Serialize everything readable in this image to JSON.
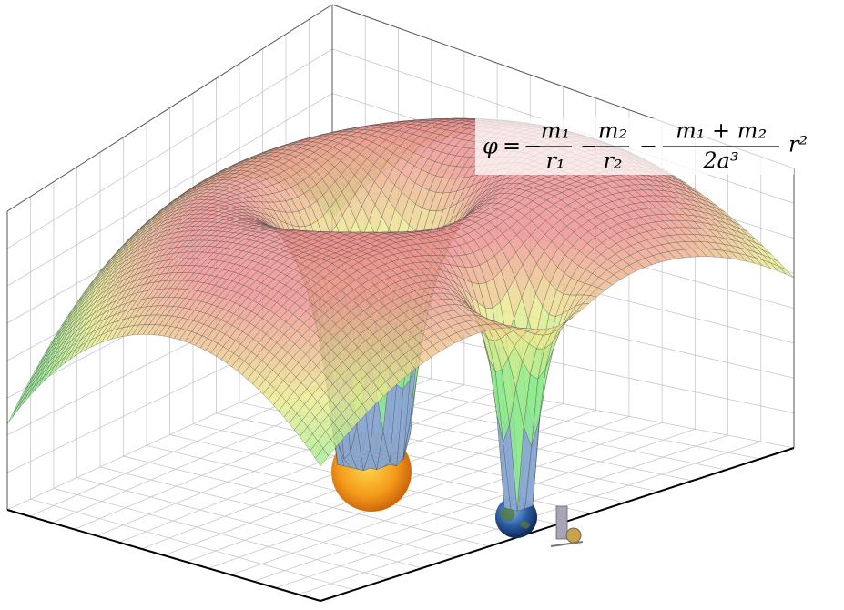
{
  "formula": {
    "lhs": "φ",
    "equals": "=",
    "terms": [
      {
        "sign": "−",
        "numerator": "m₁",
        "denominator": "r₁"
      },
      {
        "sign": "−",
        "numerator": "m₂",
        "denominator": "r₂"
      },
      {
        "sign": "−",
        "numerator": "m₁ + m₂",
        "denominator": "2a³",
        "factor": "r²"
      }
    ]
  }
}
